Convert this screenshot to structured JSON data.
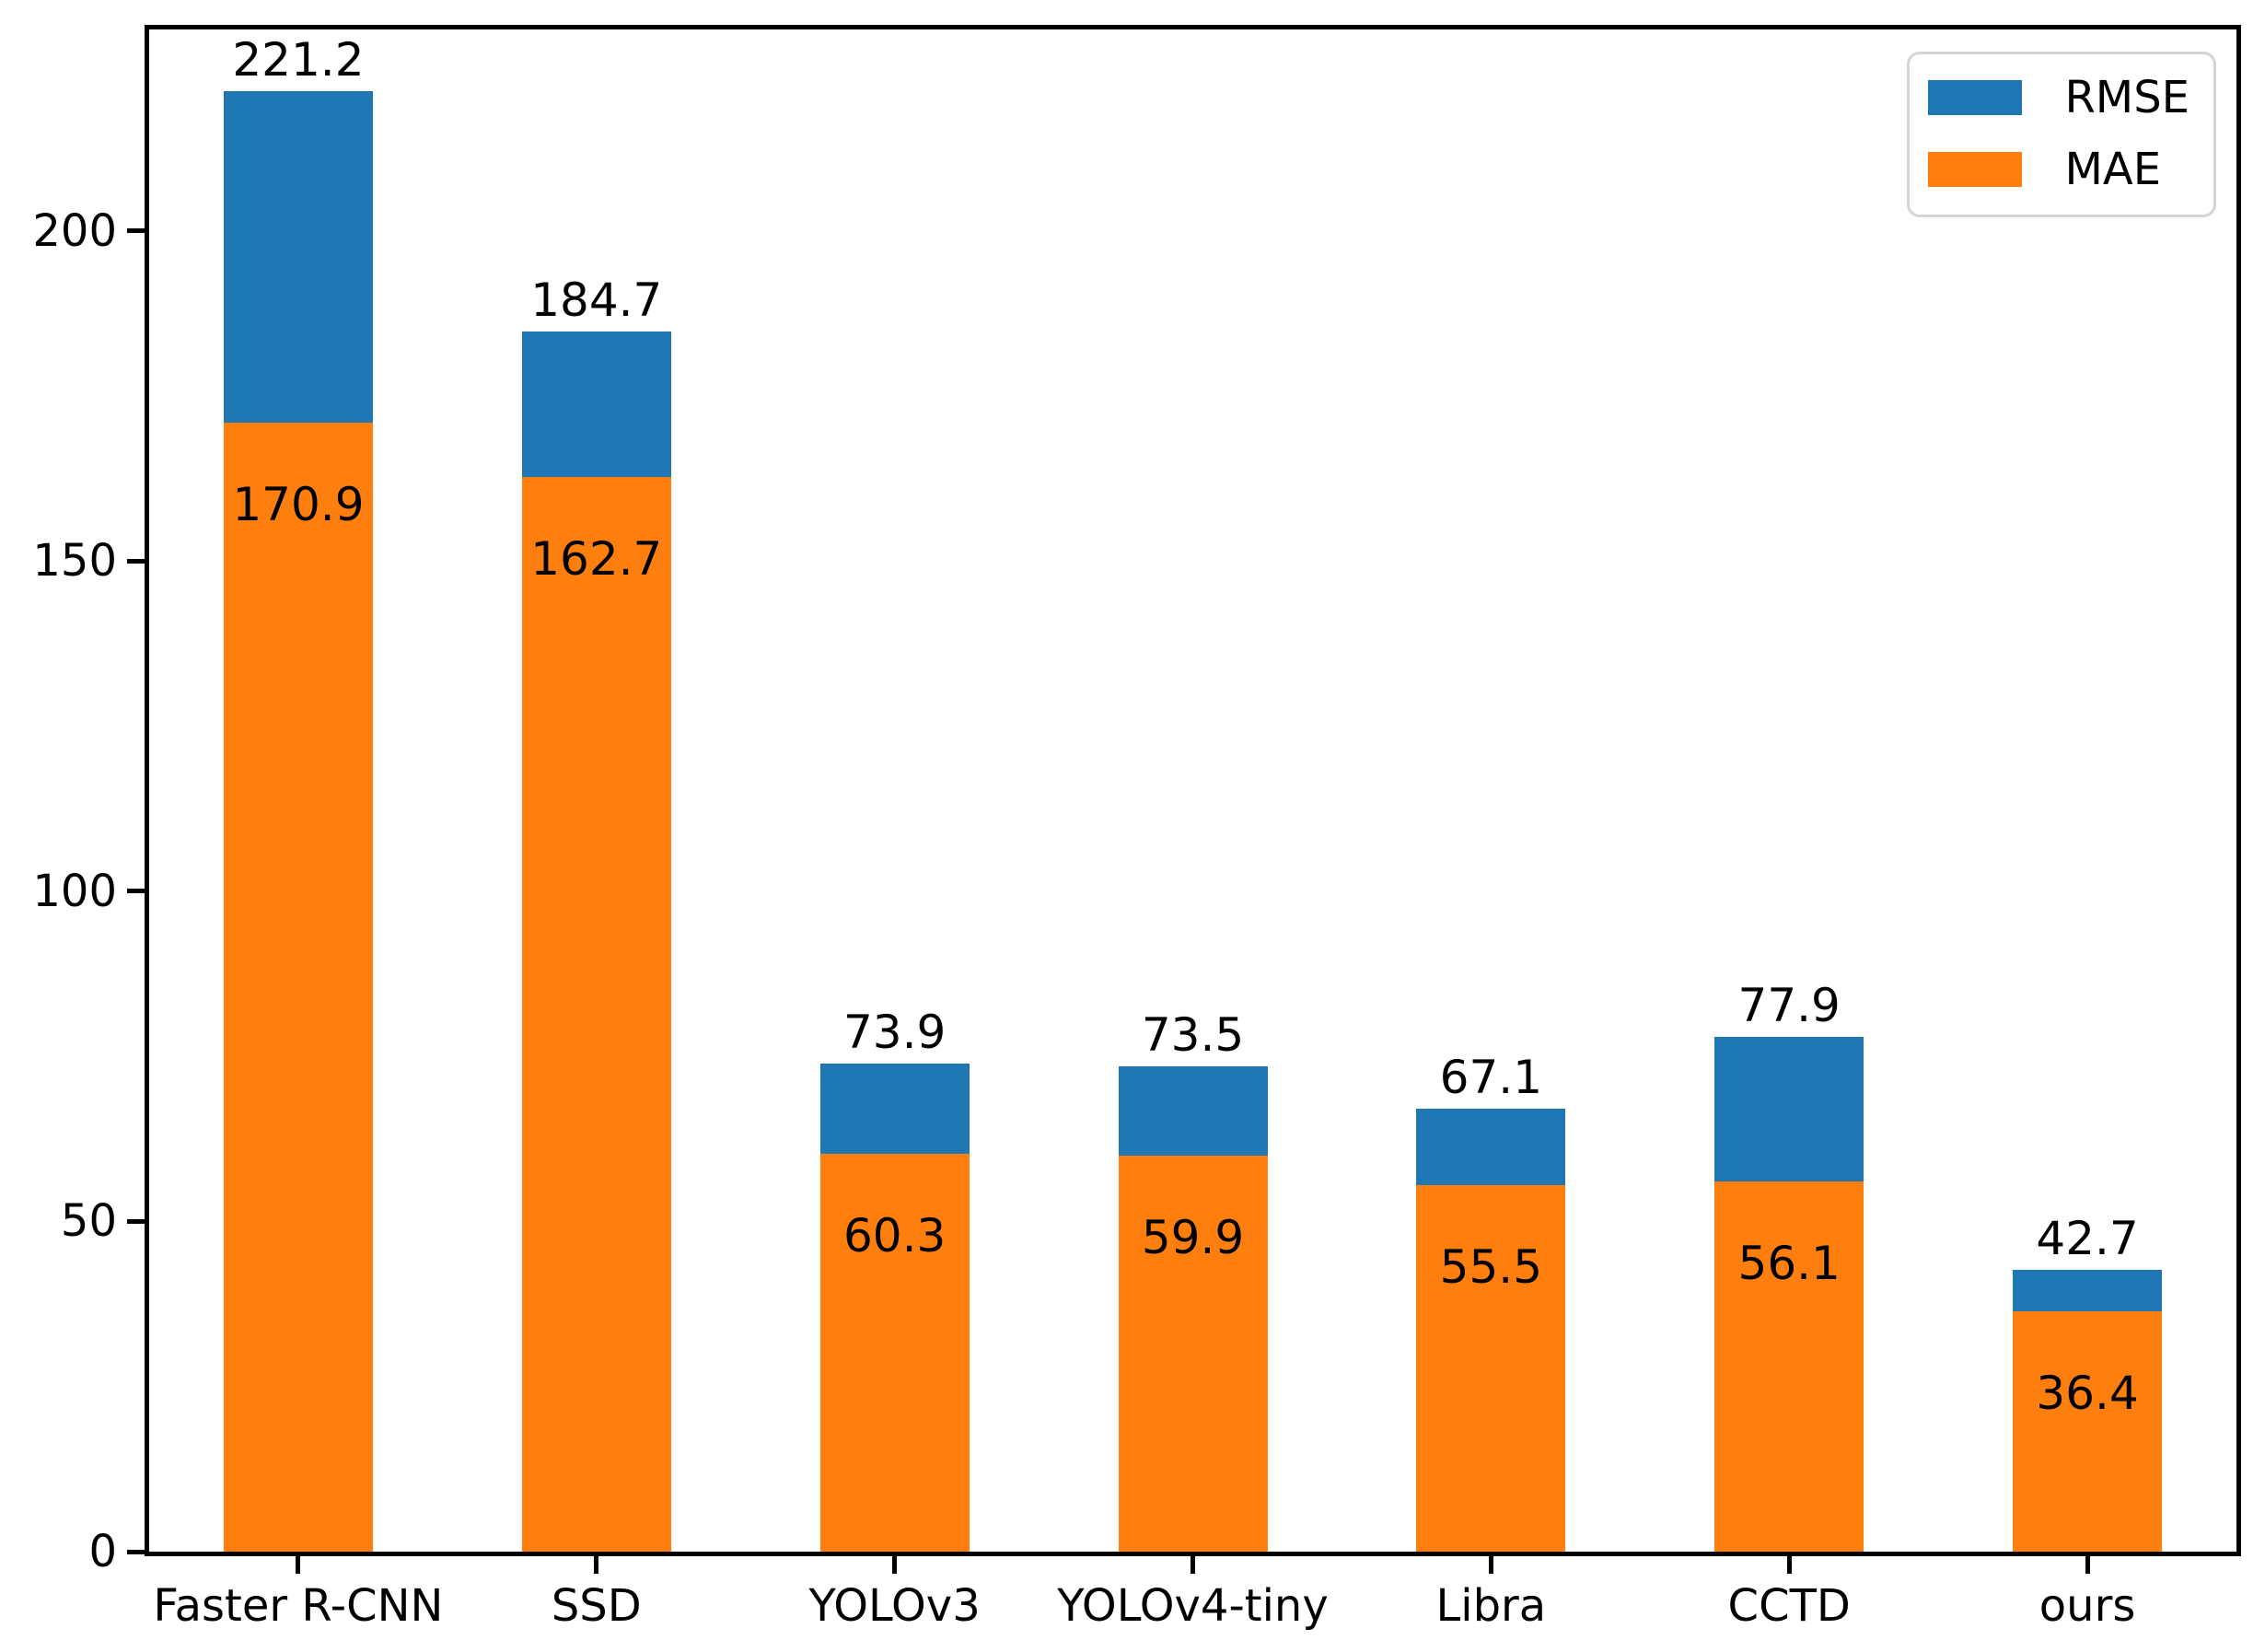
{
  "figure": {
    "background": "#ffffff",
    "axis_color": "#000000",
    "text_color": "#000000",
    "legend_border_color": "#d4d4d4"
  },
  "chart_data": {
    "type": "bar",
    "title": "",
    "xlabel": "",
    "ylabel": "",
    "categories": [
      "Faster R-CNN",
      "SSD",
      "YOLOv3",
      "YOLOv4-tiny",
      "Libra",
      "CCTD",
      "ours"
    ],
    "series": [
      {
        "name": "RMSE",
        "color": "#1f77b4",
        "values": [
          221.2,
          184.7,
          73.9,
          73.5,
          67.1,
          77.9,
          42.7
        ],
        "labels": [
          "221.2",
          "184.7",
          "73.9",
          "73.5",
          "67.1",
          "77.9",
          "42.7"
        ]
      },
      {
        "name": "MAE",
        "color": "#ff7f0e",
        "values": [
          170.9,
          162.7,
          60.3,
          59.9,
          55.5,
          56.1,
          36.4
        ],
        "labels": [
          "170.9",
          "162.7",
          "60.3",
          "59.9",
          "55.5",
          "56.1",
          "36.4"
        ]
      }
    ],
    "bar_render": "overlay-mae-in-front-of-rmse",
    "value_labels_shown": true,
    "y_ticks": [
      {
        "value": 0,
        "label": "0"
      },
      {
        "value": 50,
        "label": "50"
      },
      {
        "value": 100,
        "label": "100"
      },
      {
        "value": 150,
        "label": "150"
      },
      {
        "value": 200,
        "label": "200"
      }
    ],
    "ylim": [
      0,
      230.5
    ],
    "grid": false,
    "legend": {
      "position": "upper right",
      "entries": [
        "RMSE",
        "MAE"
      ]
    }
  }
}
